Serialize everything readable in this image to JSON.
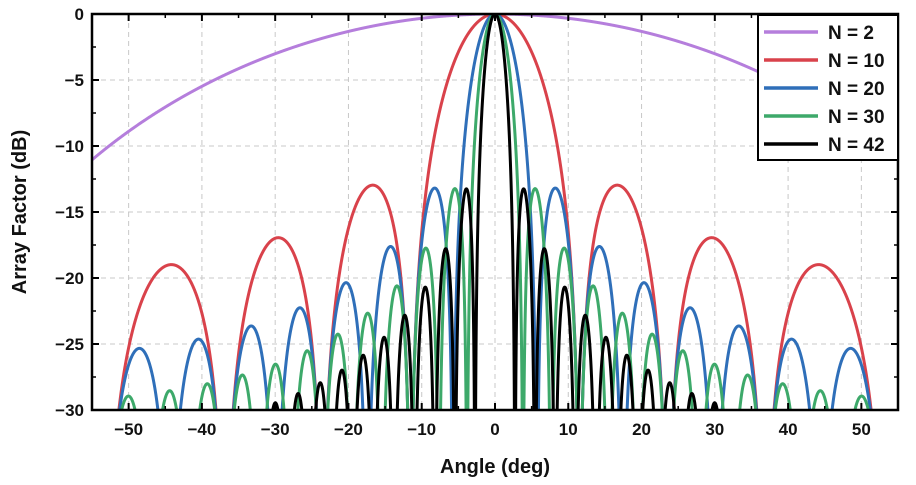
{
  "chart_data": {
    "type": "line",
    "title": "",
    "xlabel": "Angle (deg)",
    "ylabel": "Array Factor (dB)",
    "xlim": [
      -55,
      55
    ],
    "ylim": [
      -30,
      0
    ],
    "xticks": [
      -50,
      -40,
      -30,
      -20,
      -10,
      0,
      10,
      20,
      30,
      40,
      50
    ],
    "yticks": [
      0,
      -5,
      -10,
      -15,
      -20,
      -25,
      -30
    ],
    "grid": true,
    "legend_position": "top-right",
    "series": [
      {
        "name": "N = 2",
        "N": 2,
        "color": "#b57edc"
      },
      {
        "name": "N = 10",
        "N": 10,
        "color": "#d9424b"
      },
      {
        "name": "N = 20",
        "N": 20,
        "color": "#2f6fb9"
      },
      {
        "name": "N = 30",
        "N": 30,
        "color": "#3da96a"
      },
      {
        "name": "N = 42",
        "N": 42,
        "color": "#000000"
      }
    ],
    "model": "uniform linear array, half-wavelength spacing: AF(dB) = 20*log10(|sin(N*pi*sin(theta)/2) / (N*sin(pi*sin(theta)/2))|)"
  }
}
